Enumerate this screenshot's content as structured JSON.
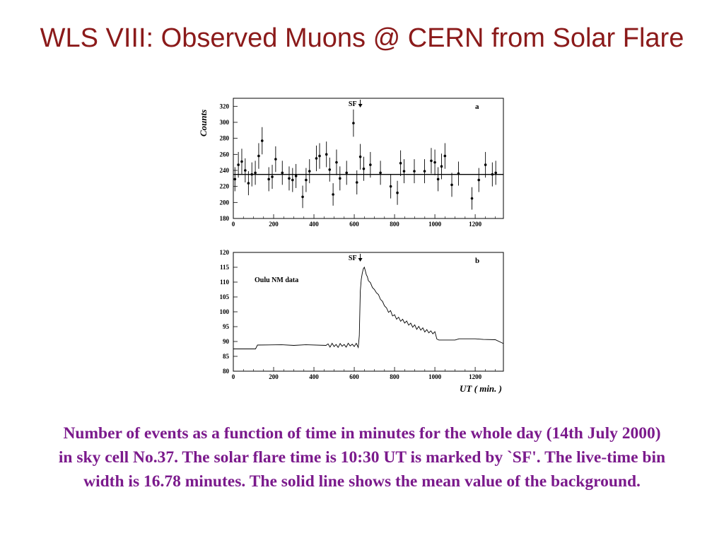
{
  "slide": {
    "title": "WLS VIII: Observed Muons @ CERN from Solar Flare",
    "caption": "Number of events as a function of time in minutes for the whole day (14th July 2000) in sky cell No.37. The solar flare time is 10:30 UT is marked by `SF'. The live-time bin width is 16.78 minutes. The solid line shows the mean value of the background."
  },
  "chart_data": [
    {
      "type": "scatter",
      "panel_label": "a",
      "ylabel": "Counts",
      "xlabel": "",
      "xlim": [
        0,
        1340
      ],
      "ylim": [
        180,
        330
      ],
      "xticks": [
        0,
        200,
        400,
        600,
        800,
        1000,
        1200
      ],
      "yticks": [
        180,
        200,
        220,
        240,
        260,
        280,
        300,
        320
      ],
      "mean_line": 235,
      "marker": {
        "label": "SF",
        "x": 630
      },
      "grid": false,
      "points": [
        {
          "x": 8,
          "y": 229,
          "err": 15
        },
        {
          "x": 25,
          "y": 247,
          "err": 16
        },
        {
          "x": 42,
          "y": 251,
          "err": 16
        },
        {
          "x": 59,
          "y": 240,
          "err": 15
        },
        {
          "x": 75,
          "y": 224,
          "err": 15
        },
        {
          "x": 92,
          "y": 235,
          "err": 15
        },
        {
          "x": 109,
          "y": 237,
          "err": 15
        },
        {
          "x": 126,
          "y": 258,
          "err": 16
        },
        {
          "x": 143,
          "y": 277,
          "err": 17
        },
        {
          "x": 176,
          "y": 229,
          "err": 15
        },
        {
          "x": 193,
          "y": 232,
          "err": 15
        },
        {
          "x": 210,
          "y": 254,
          "err": 16
        },
        {
          "x": 243,
          "y": 237,
          "err": 15
        },
        {
          "x": 277,
          "y": 230,
          "err": 15
        },
        {
          "x": 294,
          "y": 228,
          "err": 15
        },
        {
          "x": 311,
          "y": 233,
          "err": 15
        },
        {
          "x": 344,
          "y": 207,
          "err": 14
        },
        {
          "x": 361,
          "y": 228,
          "err": 15
        },
        {
          "x": 378,
          "y": 239,
          "err": 15
        },
        {
          "x": 412,
          "y": 255,
          "err": 16
        },
        {
          "x": 428,
          "y": 258,
          "err": 16
        },
        {
          "x": 462,
          "y": 260,
          "err": 16
        },
        {
          "x": 478,
          "y": 241,
          "err": 15
        },
        {
          "x": 495,
          "y": 210,
          "err": 14
        },
        {
          "x": 512,
          "y": 250,
          "err": 16
        },
        {
          "x": 529,
          "y": 230,
          "err": 15
        },
        {
          "x": 562,
          "y": 237,
          "err": 15
        },
        {
          "x": 596,
          "y": 299,
          "err": 17
        },
        {
          "x": 613,
          "y": 225,
          "err": 15
        },
        {
          "x": 630,
          "y": 257,
          "err": 16
        },
        {
          "x": 647,
          "y": 242,
          "err": 15
        },
        {
          "x": 680,
          "y": 247,
          "err": 16
        },
        {
          "x": 730,
          "y": 237,
          "err": 15
        },
        {
          "x": 781,
          "y": 220,
          "err": 15
        },
        {
          "x": 814,
          "y": 212,
          "err": 15
        },
        {
          "x": 830,
          "y": 249,
          "err": 16
        },
        {
          "x": 847,
          "y": 239,
          "err": 15
        },
        {
          "x": 898,
          "y": 239,
          "err": 15
        },
        {
          "x": 949,
          "y": 239,
          "err": 15
        },
        {
          "x": 982,
          "y": 252,
          "err": 16
        },
        {
          "x": 1000,
          "y": 250,
          "err": 16
        },
        {
          "x": 1016,
          "y": 229,
          "err": 15
        },
        {
          "x": 1033,
          "y": 245,
          "err": 16
        },
        {
          "x": 1050,
          "y": 258,
          "err": 16
        },
        {
          "x": 1084,
          "y": 222,
          "err": 15
        },
        {
          "x": 1117,
          "y": 236,
          "err": 15
        },
        {
          "x": 1184,
          "y": 205,
          "err": 14
        },
        {
          "x": 1218,
          "y": 228,
          "err": 15
        },
        {
          "x": 1251,
          "y": 247,
          "err": 16
        },
        {
          "x": 1285,
          "y": 235,
          "err": 15
        },
        {
          "x": 1302,
          "y": 237,
          "err": 15
        }
      ]
    },
    {
      "type": "line",
      "panel_label": "b",
      "series_label": "Oulu NM data",
      "xlabel": "UT ( min. )",
      "ylabel": "",
      "xlim": [
        0,
        1340
      ],
      "ylim": [
        80,
        120
      ],
      "xticks": [
        0,
        200,
        400,
        600,
        800,
        1000,
        1200
      ],
      "yticks": [
        80,
        85,
        90,
        95,
        100,
        105,
        110,
        115,
        120
      ],
      "marker": {
        "label": "SF",
        "x": 630
      },
      "grid": false,
      "x": [
        0,
        110,
        120,
        240,
        300,
        360,
        460,
        470,
        480,
        490,
        500,
        510,
        520,
        530,
        540,
        550,
        560,
        570,
        580,
        590,
        600,
        610,
        620,
        625,
        630,
        635,
        640,
        645,
        650,
        655,
        660,
        665,
        670,
        680,
        690,
        700,
        710,
        720,
        730,
        740,
        750,
        760,
        770,
        780,
        790,
        800,
        810,
        820,
        830,
        840,
        850,
        860,
        870,
        880,
        890,
        900,
        910,
        920,
        930,
        940,
        950,
        960,
        970,
        980,
        990,
        1000,
        1010,
        1020,
        1100,
        1120,
        1200,
        1240,
        1300,
        1340
      ],
      "y": [
        87.5,
        87.5,
        88.8,
        88.9,
        88.7,
        88.9,
        88.7,
        89.2,
        88.1,
        89.4,
        88.3,
        89.0,
        88.0,
        89.3,
        88.4,
        89.0,
        88.1,
        89.4,
        88.5,
        89.1,
        88.3,
        89.4,
        88.0,
        92,
        107,
        111,
        113,
        114.5,
        115,
        113.8,
        112.5,
        111.8,
        110.5,
        109.8,
        108.2,
        107.5,
        106.4,
        105.8,
        104.2,
        103.5,
        102.0,
        101.3,
        99.8,
        100.4,
        98.6,
        99.0,
        97.5,
        98.2,
        96.8,
        97.5,
        96.2,
        96.9,
        95.5,
        96.2,
        94.8,
        95.6,
        94.1,
        95.1,
        93.8,
        94.6,
        93.2,
        94.0,
        92.9,
        93.6,
        92.6,
        93.3,
        90.8,
        90.5,
        90.5,
        90.9,
        90.9,
        90.7,
        90.6,
        89.3
      ]
    }
  ]
}
